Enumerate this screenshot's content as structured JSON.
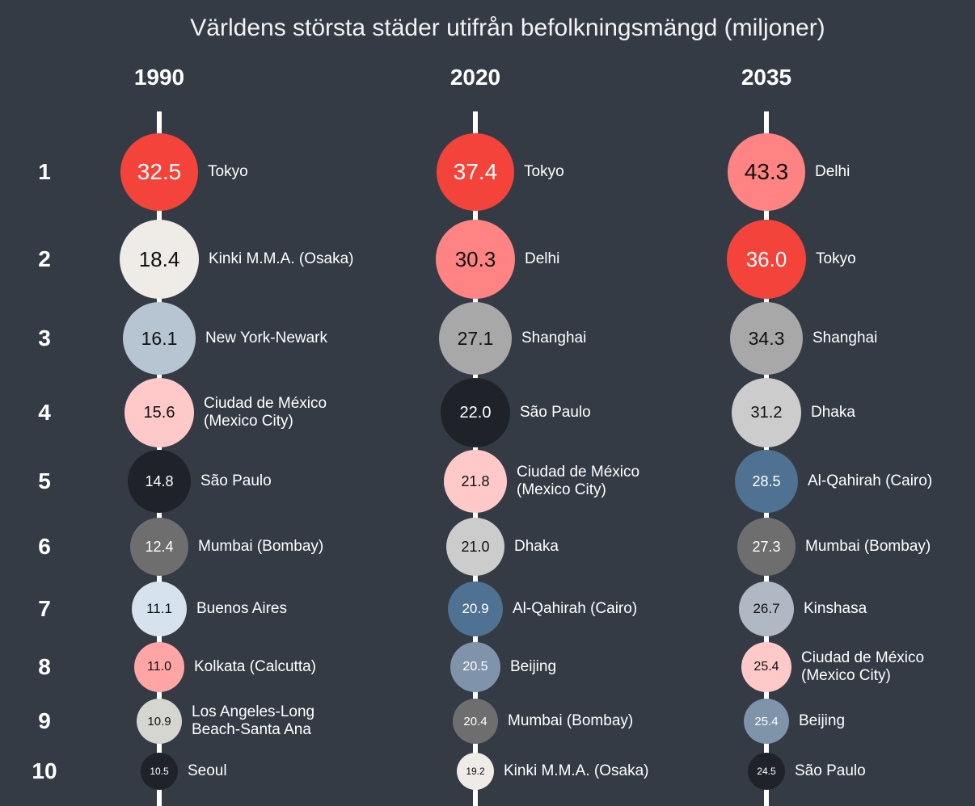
{
  "chart_data": {
    "type": "bubble",
    "title": "Världens största städer utifrån befolkningsmängd (miljoner)",
    "ranks": [
      1,
      2,
      3,
      4,
      5,
      6,
      7,
      8,
      9,
      10
    ],
    "columns": [
      {
        "name": "1990",
        "cities": [
          "Tokyo",
          "Kinki M.M.A. (Osaka)",
          "New York-Newark",
          "Ciudad de México\n(Mexico City)",
          "São Paulo",
          "Mumbai (Bombay)",
          "Buenos Aires",
          "Kolkata (Calcutta)",
          "Los Angeles-Long\nBeach-Santa Ana",
          "Seoul"
        ],
        "values": [
          32.5,
          18.4,
          16.1,
          15.6,
          14.8,
          12.4,
          11.1,
          11.0,
          10.9,
          10.5
        ],
        "value_labels": [
          "32.5",
          "18.4",
          "16.1",
          "15.6",
          "14.8",
          "12.4",
          "11.1",
          "11.0",
          "10.9",
          "10.5"
        ],
        "colors": [
          "#f4433a",
          "#efebe7",
          "#b7c5d3",
          "#ffc9c9",
          "#1f2329",
          "#6e6e6e",
          "#d6e3ee",
          "#ffa5a5",
          "#d6d6d0",
          "#1f2329"
        ]
      },
      {
        "name": "2020",
        "cities": [
          "Tokyo",
          "Delhi",
          "Shanghai",
          "São Paulo",
          "Ciudad de México\n(Mexico City)",
          "Dhaka",
          "Al-Qahirah (Cairo)",
          "Beijing",
          "Mumbai (Bombay)",
          "Kinki M.M.A. (Osaka)"
        ],
        "values": [
          37.4,
          30.3,
          27.1,
          22.0,
          21.8,
          21.0,
          20.9,
          20.5,
          20.4,
          19.2
        ],
        "value_labels": [
          "37.4",
          "30.3",
          "27.1",
          "22.0",
          "21.8",
          "21.0",
          "20.9",
          "20.5",
          "20.4",
          "19.2"
        ],
        "colors": [
          "#f4433a",
          "#ff8383",
          "#a8a8a8",
          "#1f2329",
          "#ffc9c9",
          "#cccccc",
          "#4f7192",
          "#7f93aa",
          "#6e6e6e",
          "#efebe7"
        ]
      },
      {
        "name": "2035",
        "cities": [
          "Delhi",
          "Tokyo",
          "Shanghai",
          "Dhaka",
          "Al-Qahirah (Cairo)",
          "Mumbai (Bombay)",
          "Kinshasa",
          "Ciudad de México\n(Mexico City)",
          "Beijing",
          "São Paulo"
        ],
        "values": [
          43.3,
          36.0,
          34.3,
          31.2,
          28.5,
          27.3,
          26.7,
          25.4,
          25.4,
          24.5
        ],
        "value_labels": [
          "43.3",
          "36.0",
          "34.3",
          "31.2",
          "28.5",
          "27.3",
          "26.7",
          "25.4",
          "25.4",
          "24.5"
        ],
        "colors": [
          "#ff8383",
          "#f4433a",
          "#a8a8a8",
          "#cccccc",
          "#4f7192",
          "#6e6e6e",
          "#b0b8c4",
          "#ffc9c9",
          "#7f93aa",
          "#1f2329"
        ]
      }
    ]
  }
}
